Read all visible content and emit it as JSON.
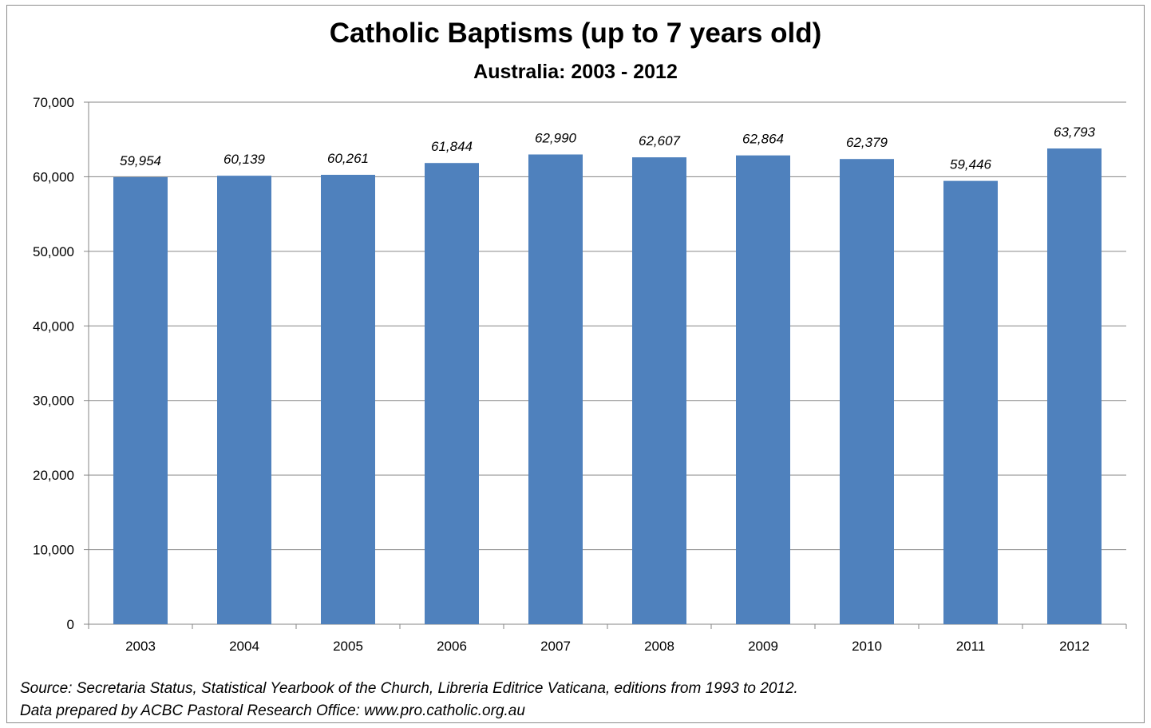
{
  "chart_data": {
    "type": "bar",
    "title": "Catholic Baptisms (up to 7 years old)",
    "subtitle": "Australia: 2003 - 2012",
    "categories": [
      "2003",
      "2004",
      "2005",
      "2006",
      "2007",
      "2008",
      "2009",
      "2010",
      "2011",
      "2012"
    ],
    "values": [
      59954,
      60139,
      60261,
      61844,
      62990,
      62607,
      62864,
      62379,
      59446,
      63793
    ],
    "data_labels": [
      "59,954",
      "60,139",
      "60,261",
      "61,844",
      "62,990",
      "62,607",
      "62,864",
      "62,379",
      "59,446",
      "63,793"
    ],
    "y_ticks": [
      "0",
      "10,000",
      "20,000",
      "30,000",
      "40,000",
      "50,000",
      "60,000",
      "70,000"
    ],
    "xlabel": "",
    "ylabel": "",
    "ylim": [
      0,
      70000
    ],
    "grid": true,
    "legend": "none",
    "bar_color": "#4f81bd"
  },
  "notes": {
    "source": "Source: Secretaria Status, Statistical Yearbook of the Church, Libreria Editrice Vaticana, editions from 1993 to 2012.",
    "prepared": "Data prepared by ACBC Pastoral Research Office: www.pro.catholic.org.au"
  }
}
